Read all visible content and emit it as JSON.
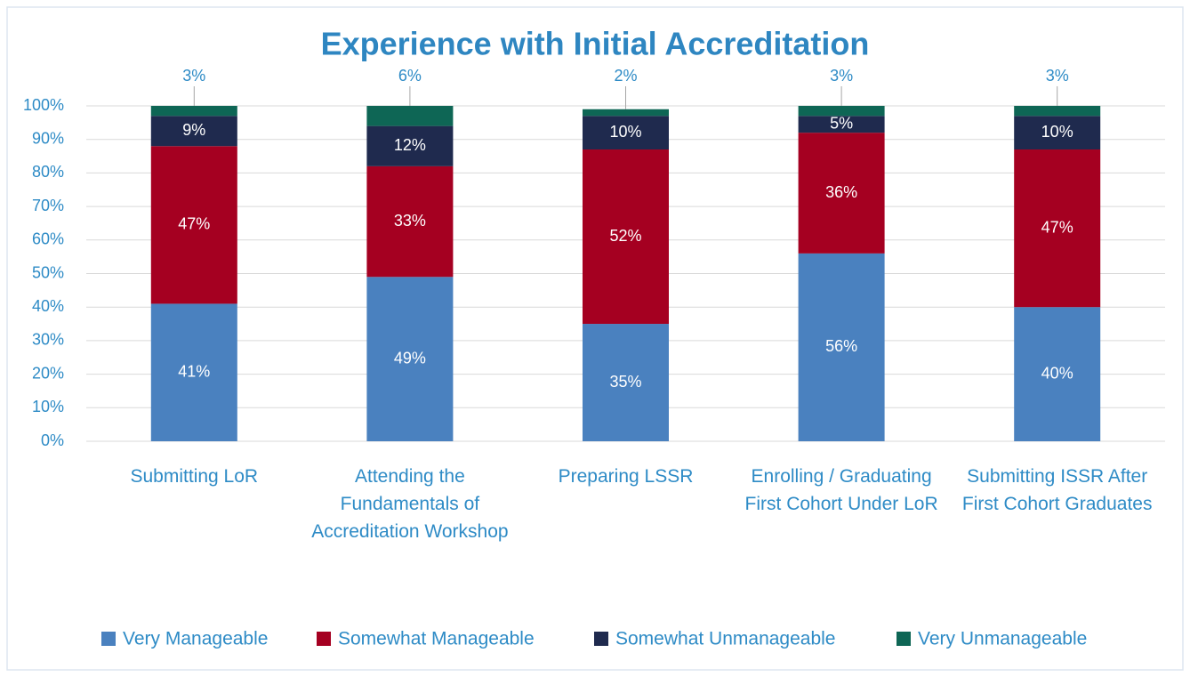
{
  "chart_data": {
    "type": "stacked_bar",
    "title": "Experience with Initial Accreditation",
    "categories": [
      "Submitting LoR",
      "Attending the Fundamentals of Accreditation Workshop",
      "Preparing LSSR",
      "Enrolling / Graduating First Cohort Under LoR",
      "Submitting ISSR After First Cohort Graduates"
    ],
    "series": [
      {
        "name": "Very Manageable",
        "color": "#4a81bf",
        "values": [
          41,
          49,
          35,
          56,
          40
        ],
        "value_labels": [
          "41%",
          "49%",
          "35%",
          "56%",
          "40%"
        ]
      },
      {
        "name": "Somewhat Manageable",
        "color": "#a50021",
        "values": [
          47,
          33,
          52,
          36,
          47
        ],
        "value_labels": [
          "47%",
          "33%",
          "52%",
          "36%",
          "47%"
        ]
      },
      {
        "name": "Somewhat Unmanageable",
        "color": "#1f2a4e",
        "values": [
          9,
          12,
          10,
          5,
          10
        ],
        "value_labels": [
          "9%",
          "12%",
          "10%",
          "5%",
          "10%"
        ]
      },
      {
        "name": "Very Unmanageable",
        "color": "#0e6655",
        "values": [
          3,
          6,
          2,
          3,
          3
        ],
        "value_labels": [
          "3%",
          "6%",
          "2%",
          "3%",
          "3%"
        ]
      }
    ],
    "ylim": [
      0,
      100
    ],
    "yticks": [
      {
        "value": 0,
        "label": "0%"
      },
      {
        "value": 10,
        "label": "10%"
      },
      {
        "value": 20,
        "label": "20%"
      },
      {
        "value": 30,
        "label": "30%"
      },
      {
        "value": 40,
        "label": "40%"
      },
      {
        "value": 50,
        "label": "50%"
      },
      {
        "value": 60,
        "label": "60%"
      },
      {
        "value": 70,
        "label": "70%"
      },
      {
        "value": 80,
        "label": "80%"
      },
      {
        "value": 90,
        "label": "90%"
      },
      {
        "value": 100,
        "label": "100%"
      }
    ],
    "grid": true,
    "legend": "bottom"
  }
}
